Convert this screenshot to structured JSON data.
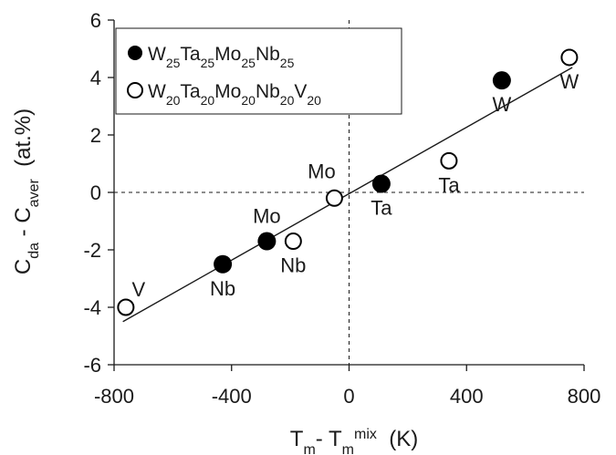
{
  "chart_data": {
    "type": "scatter",
    "title": "",
    "xlabel": {
      "main": "T",
      "sub1": "m",
      "mid": "- T",
      "sub2": "m",
      "sup2": "mix",
      "unit": "  (K)"
    },
    "ylabel": {
      "main": "C",
      "sub1": "da",
      "mid": " - C",
      "sub2": "aver",
      "unit": "  (at.%)"
    },
    "xlim": [
      -800,
      800
    ],
    "ylim": [
      -6,
      6
    ],
    "xticks": [
      -800,
      -400,
      0,
      400,
      800
    ],
    "yticks": [
      -6,
      -4,
      -2,
      0,
      2,
      4,
      6
    ],
    "xtick_labels": [
      "-800",
      "-400",
      "0",
      "400",
      "800"
    ],
    "ytick_labels": [
      "-6",
      "-4",
      "-2",
      "0",
      "2",
      "4",
      "6"
    ],
    "grid": false,
    "reference_lines": {
      "x": 0,
      "y": 0,
      "style": "dashed"
    },
    "legend_position": "top-left",
    "series": [
      {
        "name": "W25Ta25Mo25Nb25",
        "legend_parts": [
          [
            "W",
            "25"
          ],
          [
            "Ta",
            "25"
          ],
          [
            "Mo",
            "25"
          ],
          [
            "Nb",
            "25"
          ]
        ],
        "marker": "filled-circle",
        "points": [
          {
            "label": "Nb",
            "x": -430,
            "y": -2.5,
            "label_pos": "below"
          },
          {
            "label": "Mo",
            "x": -280,
            "y": -1.7,
            "label_pos": "above"
          },
          {
            "label": "Ta",
            "x": 110,
            "y": 0.3,
            "label_pos": "below"
          },
          {
            "label": "W",
            "x": 520,
            "y": 3.9,
            "label_pos": "below"
          }
        ]
      },
      {
        "name": "W20Ta20Mo20Nb20V20",
        "legend_parts": [
          [
            "W",
            "20"
          ],
          [
            "Ta",
            "20"
          ],
          [
            "Mo",
            "20"
          ],
          [
            "Nb",
            "20"
          ],
          [
            "V",
            "20"
          ]
        ],
        "marker": "open-circle",
        "points": [
          {
            "label": "V",
            "x": -760,
            "y": -4.0,
            "label_pos": "above-right"
          },
          {
            "label": "Nb",
            "x": -190,
            "y": -1.7,
            "label_pos": "below"
          },
          {
            "label": "Mo",
            "x": -50,
            "y": -0.2,
            "label_pos": "above-left"
          },
          {
            "label": "Ta",
            "x": 340,
            "y": 1.1,
            "label_pos": "below"
          },
          {
            "label": "W",
            "x": 750,
            "y": 4.7,
            "label_pos": "below"
          }
        ]
      }
    ],
    "fit_line": {
      "x": [
        -770,
        760
      ],
      "y": [
        -4.5,
        4.35
      ]
    }
  },
  "colors": {
    "marker_fill": "#000000",
    "open_marker_fill": "#ffffff",
    "axis": "#1a1a1a",
    "fit_line": "#1a1a1a"
  }
}
